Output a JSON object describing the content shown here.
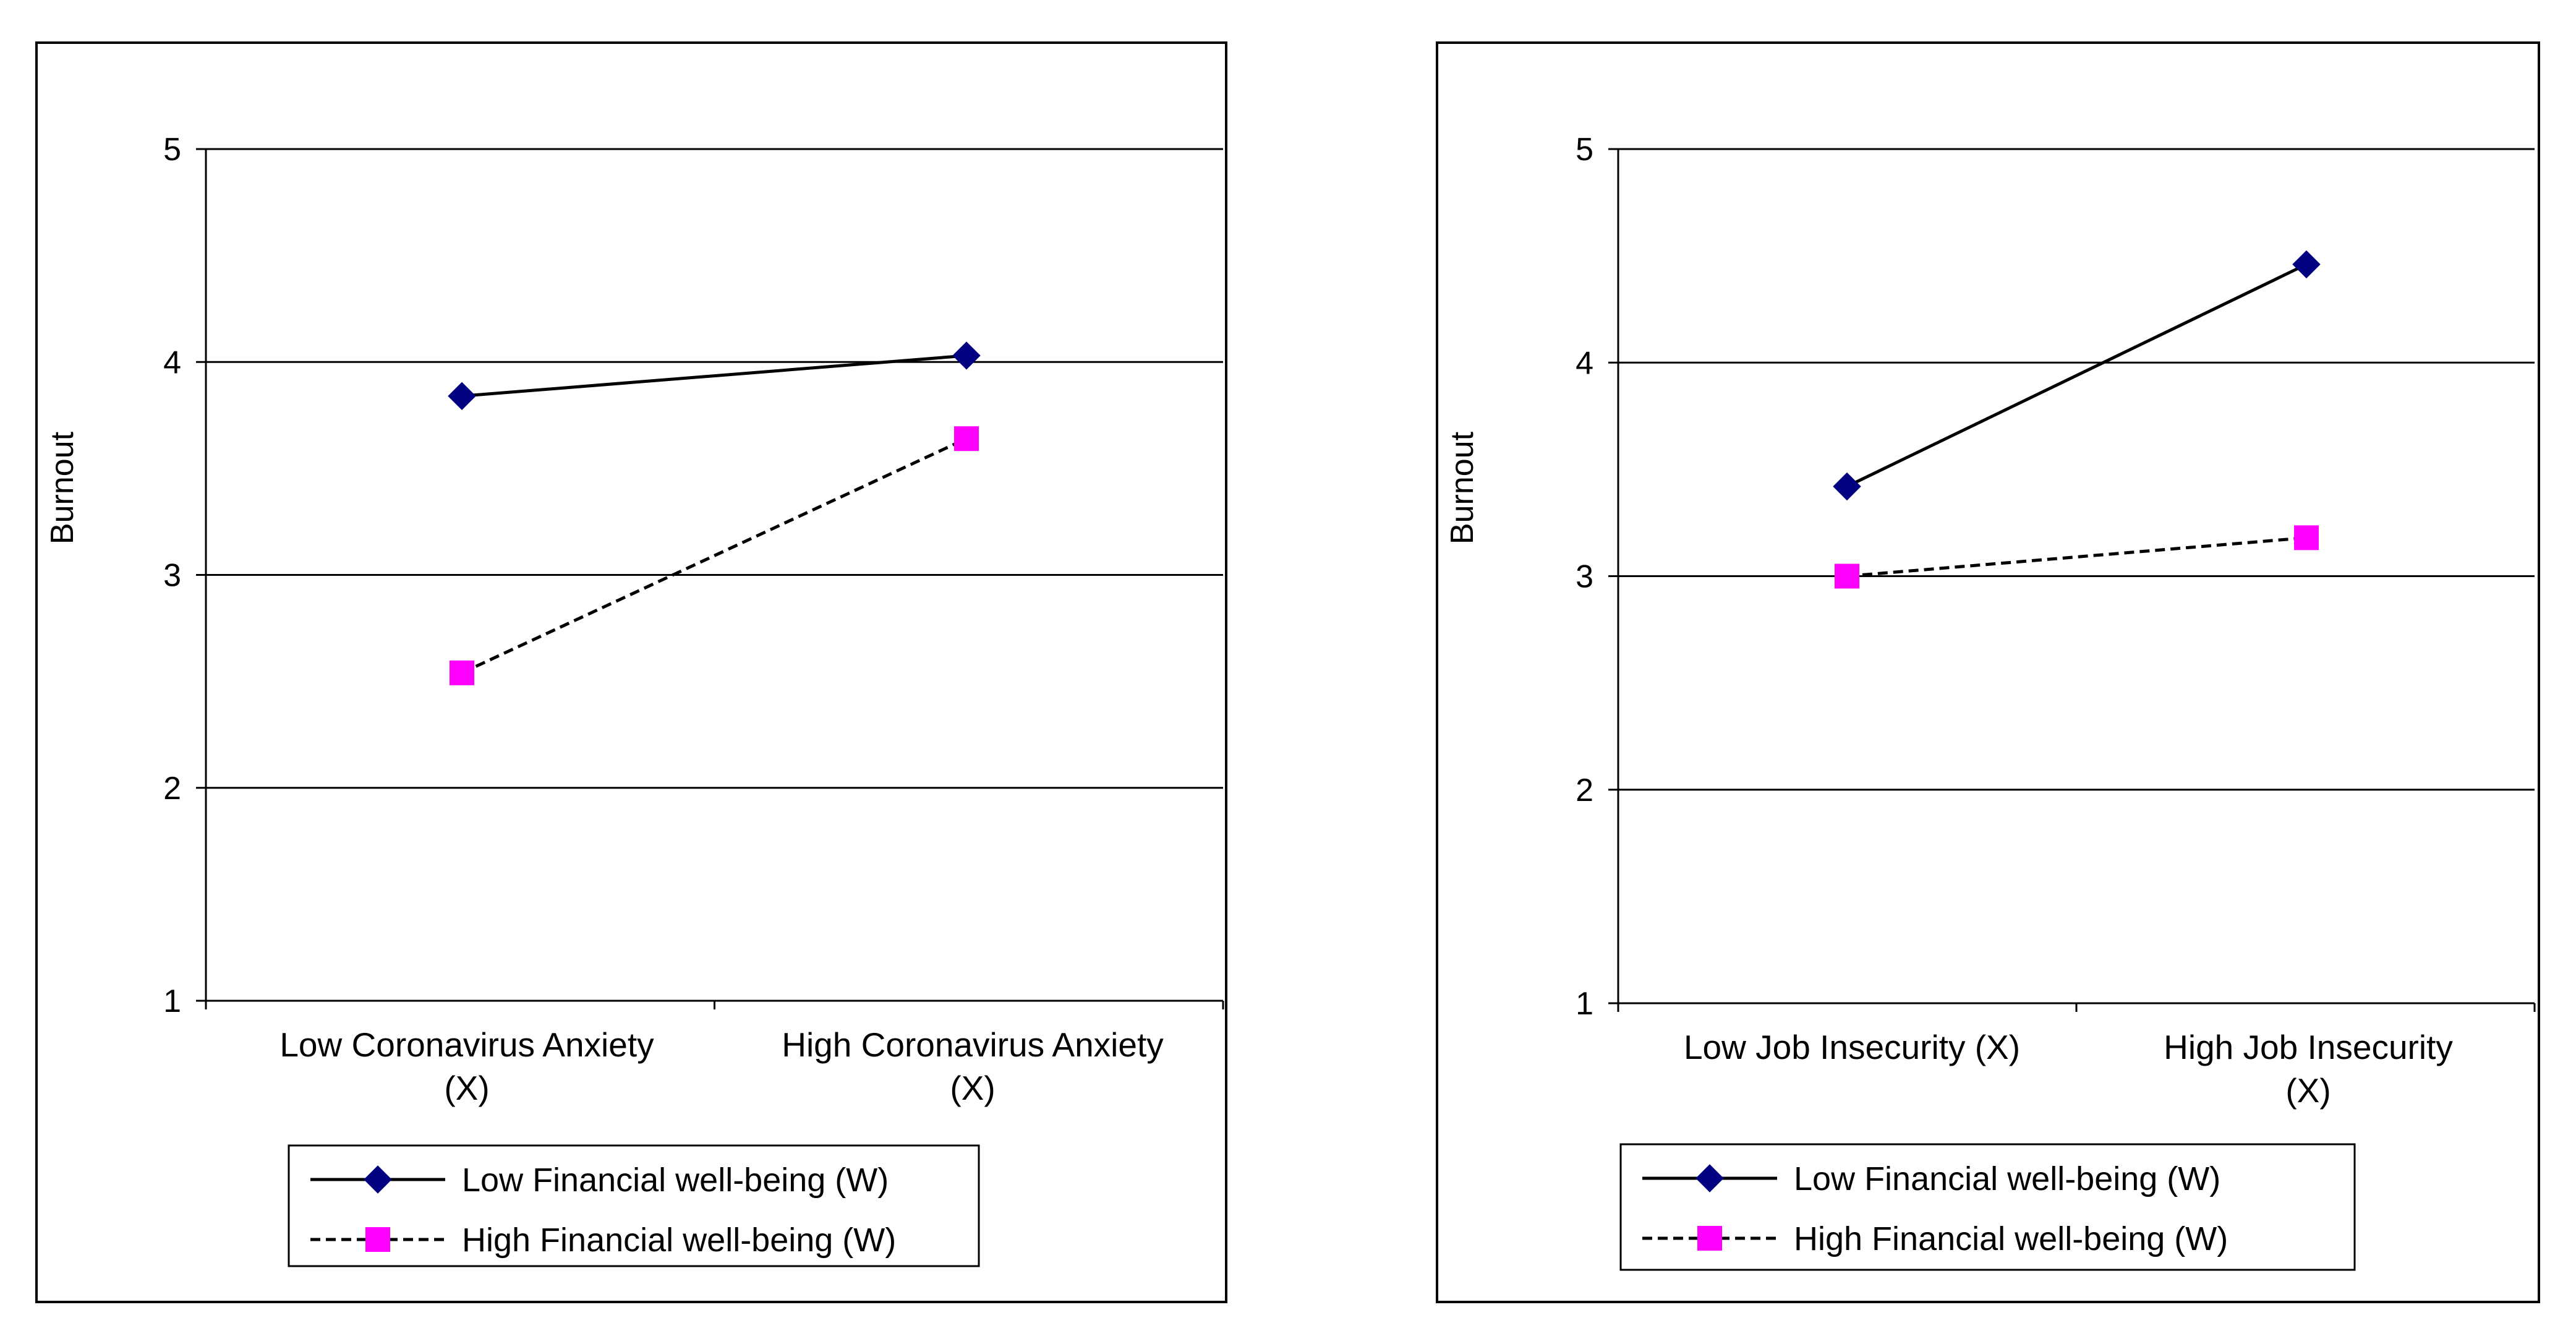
{
  "colors": {
    "series_low": "#000080",
    "series_high": "#ff00ff",
    "line": "#000000",
    "grid": "#000000",
    "background": "#ffffff"
  },
  "chart_data": [
    {
      "type": "line",
      "title": "",
      "ylabel": "Burnout",
      "xlabel": "",
      "ylim": [
        1,
        5
      ],
      "yticks": [
        "1",
        "2",
        "3",
        "4",
        "5"
      ],
      "categories": [
        [
          "Low Coronavirus Anxiety",
          "(X)"
        ],
        [
          "High Coronavirus Anxiety",
          "(X)"
        ]
      ],
      "series": [
        {
          "name": "Low Financial well-being (W)",
          "marker": "diamond",
          "dash": "solid",
          "values": [
            3.84,
            4.03
          ]
        },
        {
          "name": "High Financial well-being (W)",
          "marker": "square",
          "dash": "dashed",
          "values": [
            2.54,
            3.64
          ]
        }
      ],
      "grid": true,
      "legend": "bottom"
    },
    {
      "type": "line",
      "title": "",
      "ylabel": "Burnout",
      "xlabel": "",
      "ylim": [
        1,
        5
      ],
      "yticks": [
        "1",
        "2",
        "3",
        "4",
        "5"
      ],
      "categories": [
        [
          "Low Job Insecurity (X)"
        ],
        [
          "High Job Insecurity",
          "(X)"
        ]
      ],
      "series": [
        {
          "name": "Low Financial well-being (W)",
          "marker": "diamond",
          "dash": "solid",
          "values": [
            3.42,
            4.46
          ]
        },
        {
          "name": "High Financial well-being (W)",
          "marker": "square",
          "dash": "dashed",
          "values": [
            3.0,
            3.18
          ]
        }
      ],
      "grid": true,
      "legend": "bottom"
    }
  ]
}
